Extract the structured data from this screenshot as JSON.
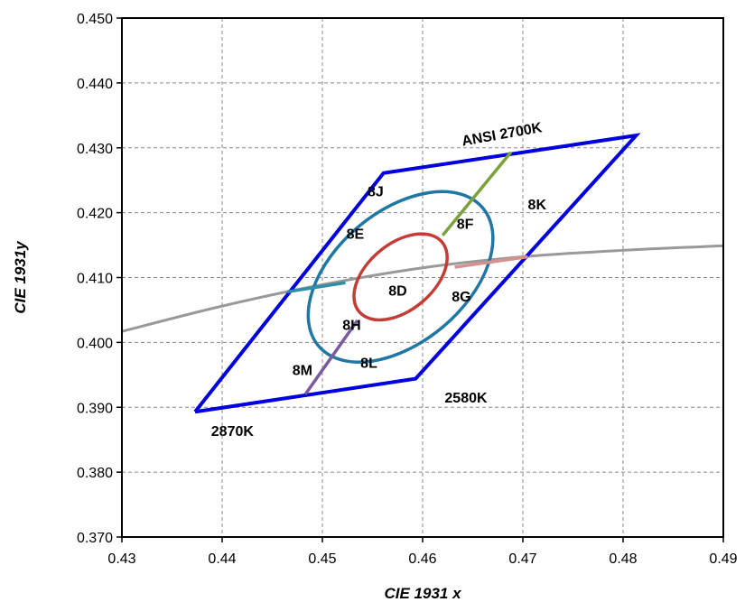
{
  "chart_data": {
    "type": "line",
    "title": "",
    "xlabel": "CIE 1931 x",
    "ylabel": "CIE 1931y",
    "xlim": [
      0.43,
      0.49
    ],
    "ylim": [
      0.37,
      0.45
    ],
    "x_ticks": [
      "0.43",
      "0.44",
      "0.45",
      "0.46",
      "0.47",
      "0.48",
      "0.49"
    ],
    "y_ticks": [
      "0.370",
      "0.380",
      "0.390",
      "0.400",
      "0.410",
      "0.420",
      "0.430",
      "0.440",
      "0.450"
    ],
    "grid": true,
    "colors": {
      "quadrangle": "#0000dd",
      "outer_ellipse": "#1f77a4",
      "inner_ellipse": "#c43c36",
      "planckian": "#999999",
      "seg_green": "#7aa23c",
      "seg_pink": "#d98f8f",
      "seg_teal": "#2e8fa6",
      "seg_purple": "#7b5a9e"
    },
    "planckian_locus": {
      "x": [
        0.43,
        0.44,
        0.45,
        0.46,
        0.47,
        0.48,
        0.49
      ],
      "y": [
        0.4017,
        0.4056,
        0.4089,
        0.4115,
        0.4132,
        0.4142,
        0.4149
      ]
    },
    "quadrangle": {
      "x": [
        0.4373,
        0.4561,
        0.4813,
        0.4593,
        0.4373
      ],
      "y": [
        0.3893,
        0.4261,
        0.4319,
        0.3944,
        0.3893
      ]
    },
    "outer_ellipse": {
      "cx": 0.4578,
      "cy": 0.4101,
      "rx": 0.0107,
      "ry": 0.0101,
      "rotation_deg": -40
    },
    "inner_ellipse": {
      "cx": 0.4578,
      "cy": 0.4101,
      "rx": 0.0054,
      "ry": 0.0051,
      "rotation_deg": -40
    },
    "segments": [
      {
        "color": "seg_green",
        "x": [
          0.462,
          0.4688
        ],
        "y": [
          0.4165,
          0.4293
        ]
      },
      {
        "color": "seg_pink",
        "x": [
          0.4632,
          0.4705
        ],
        "y": [
          0.4116,
          0.4132
        ]
      },
      {
        "color": "seg_teal",
        "x": [
          0.4465,
          0.4523
        ],
        "y": [
          0.4078,
          0.4092
        ]
      },
      {
        "color": "seg_purple",
        "x": [
          0.4535,
          0.4483
        ],
        "y": [
          0.4034,
          0.392
        ]
      }
    ],
    "annotations": [
      {
        "text": "ANSI 2700K",
        "x": 0.464,
        "y": 0.4303,
        "rotate": -10
      },
      {
        "text": "8J",
        "x": 0.4545,
        "y": 0.4225
      },
      {
        "text": "8K",
        "x": 0.4705,
        "y": 0.4205
      },
      {
        "text": "8F",
        "x": 0.4634,
        "y": 0.4175
      },
      {
        "text": "8E",
        "x": 0.4524,
        "y": 0.416
      },
      {
        "text": "8D",
        "x": 0.4566,
        "y": 0.4072
      },
      {
        "text": "8G",
        "x": 0.4629,
        "y": 0.4063
      },
      {
        "text": "8H",
        "x": 0.452,
        "y": 0.4019
      },
      {
        "text": "8M",
        "x": 0.447,
        "y": 0.395
      },
      {
        "text": "8L",
        "x": 0.4538,
        "y": 0.3961
      },
      {
        "text": "2580K",
        "x": 0.4622,
        "y": 0.3907
      },
      {
        "text": "2870K",
        "x": 0.4389,
        "y": 0.3856
      }
    ]
  }
}
